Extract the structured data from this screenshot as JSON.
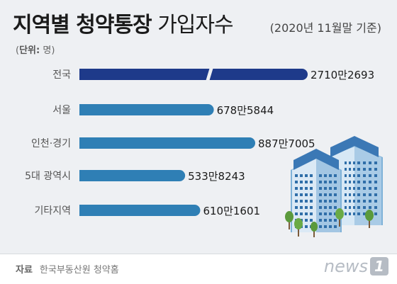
{
  "header": {
    "title_bold": "지역별 청약통장",
    "title_light": "가입자수",
    "date": "(2020년 11월말 기준)",
    "unit_label": "단위:",
    "unit_value": "명"
  },
  "footer": {
    "source_label": "자료",
    "source_value": "한국부동산원 청약홈",
    "logo_text": "news",
    "logo_num": "1"
  },
  "chart_data": {
    "type": "bar",
    "orientation": "horizontal",
    "categories": [
      "전국",
      "서울",
      "인천·경기",
      "5대 광역시",
      "기타지역"
    ],
    "values": [
      27102693,
      6785844,
      8877005,
      5338243,
      6101601
    ],
    "labels": [
      "2710만2693",
      "678만5844",
      "887만7005",
      "533만8243",
      "610만1601"
    ],
    "axis_break_on": "전국",
    "colors": {
      "highlight": "#1e3a8a",
      "default": "#2f7fb5"
    }
  }
}
